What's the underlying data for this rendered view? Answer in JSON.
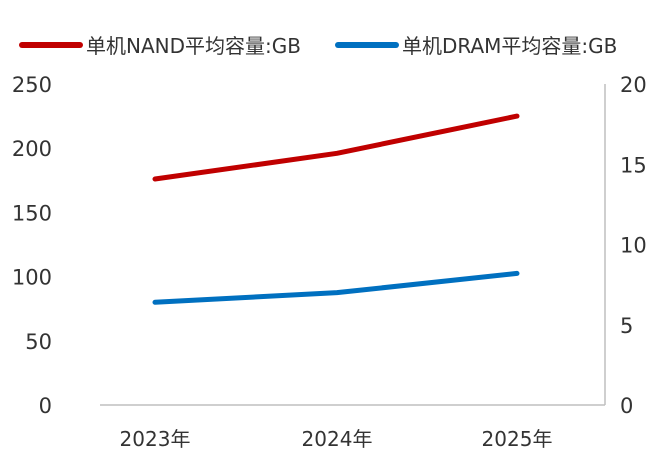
{
  "chart_data": {
    "type": "line",
    "categories": [
      "2023年",
      "2024年",
      "2025年"
    ],
    "series": [
      {
        "name": "单机NAND平均容量:GB",
        "axis": "left",
        "color": "#C00000",
        "values": [
          176,
          196,
          225
        ]
      },
      {
        "name": "单机DRAM平均容量:GB",
        "axis": "right",
        "color": "#0070C0",
        "values": [
          6.4,
          7.0,
          8.2
        ]
      }
    ],
    "ylim_left": [
      0,
      250
    ],
    "yticks_left": [
      "0",
      "50",
      "100",
      "150",
      "200",
      "250"
    ],
    "ylim_right": [
      0,
      20
    ],
    "yticks_right": [
      "0",
      "5",
      "10",
      "15",
      "20"
    ],
    "grid": false,
    "legend": "top"
  }
}
